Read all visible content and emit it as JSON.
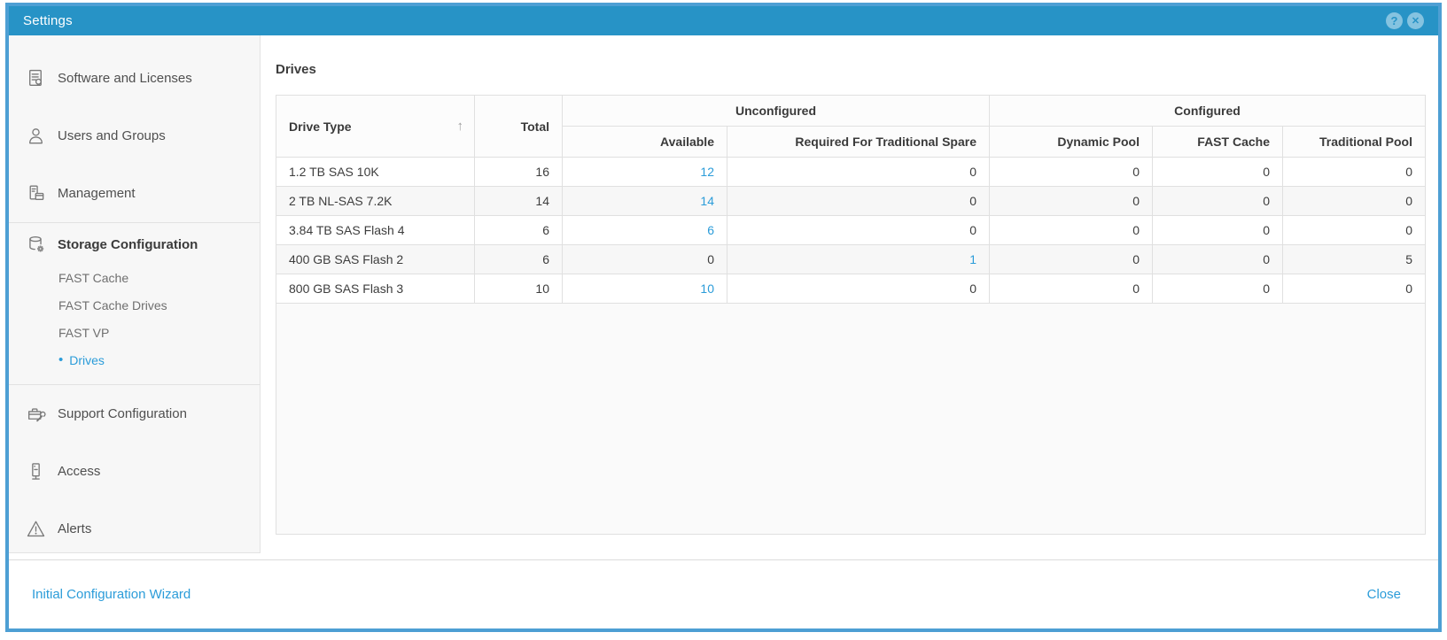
{
  "colors": {
    "titlebar_bg": "#2793c6",
    "dialog_border": "#4d9fd4",
    "link_blue": "#2b9cd9",
    "sidebar_bg": "#f7f7f7",
    "table_border": "#e0e0e0"
  },
  "titlebar": {
    "title": "Settings",
    "help_glyph": "?",
    "close_glyph": "✕"
  },
  "sidebar": {
    "groups": [
      {
        "items": [
          {
            "label": "Software and Licenses",
            "icon": "software-licenses-icon"
          },
          {
            "label": "Users and Groups",
            "icon": "users-groups-icon"
          },
          {
            "label": "Management",
            "icon": "management-icon"
          }
        ]
      },
      {
        "items": [
          {
            "label": "Storage Configuration",
            "icon": "storage-configuration-icon",
            "section": true,
            "children": [
              {
                "label": "FAST Cache"
              },
              {
                "label": "FAST Cache Drives"
              },
              {
                "label": "FAST VP"
              },
              {
                "label": "Drives",
                "selected": true
              }
            ]
          }
        ]
      },
      {
        "items": [
          {
            "label": "Support Configuration",
            "icon": "support-configuration-icon"
          },
          {
            "label": "Access",
            "icon": "access-icon"
          },
          {
            "label": "Alerts",
            "icon": "alerts-icon"
          }
        ]
      }
    ]
  },
  "main": {
    "heading": "Drives",
    "table": {
      "drive_type_header": "Drive Type",
      "sort_glyph": "↑",
      "total_header": "Total",
      "group_headers": [
        "Unconfigured",
        "Configured"
      ],
      "sub_headers": [
        "Available",
        "Required For Traditional Spare",
        "Dynamic Pool",
        "FAST Cache",
        "Traditional Pool"
      ],
      "column_keys": [
        "drive-type",
        "total",
        "available",
        "required-for-traditional-spare",
        "dynamic-pool",
        "fast-cache",
        "traditional-pool"
      ],
      "rows": [
        {
          "cells": [
            {
              "v": "1.2 TB SAS 10K"
            },
            {
              "v": "16"
            },
            {
              "v": "12",
              "link": true
            },
            {
              "v": "0"
            },
            {
              "v": "0"
            },
            {
              "v": "0"
            },
            {
              "v": "0"
            }
          ]
        },
        {
          "cells": [
            {
              "v": "2 TB NL-SAS 7.2K"
            },
            {
              "v": "14"
            },
            {
              "v": "14",
              "link": true
            },
            {
              "v": "0"
            },
            {
              "v": "0"
            },
            {
              "v": "0"
            },
            {
              "v": "0"
            }
          ]
        },
        {
          "cells": [
            {
              "v": "3.84 TB SAS Flash 4"
            },
            {
              "v": "6"
            },
            {
              "v": "6",
              "link": true
            },
            {
              "v": "0"
            },
            {
              "v": "0"
            },
            {
              "v": "0"
            },
            {
              "v": "0"
            }
          ]
        },
        {
          "cells": [
            {
              "v": "400 GB SAS Flash 2"
            },
            {
              "v": "6"
            },
            {
              "v": "0"
            },
            {
              "v": "1",
              "link": true
            },
            {
              "v": "0"
            },
            {
              "v": "0"
            },
            {
              "v": "5"
            }
          ]
        },
        {
          "cells": [
            {
              "v": "800 GB SAS Flash 3"
            },
            {
              "v": "10"
            },
            {
              "v": "10",
              "link": true
            },
            {
              "v": "0"
            },
            {
              "v": "0"
            },
            {
              "v": "0"
            },
            {
              "v": "0"
            }
          ]
        }
      ]
    }
  },
  "footer": {
    "wizard_link": "Initial Configuration Wizard",
    "close_label": "Close"
  }
}
